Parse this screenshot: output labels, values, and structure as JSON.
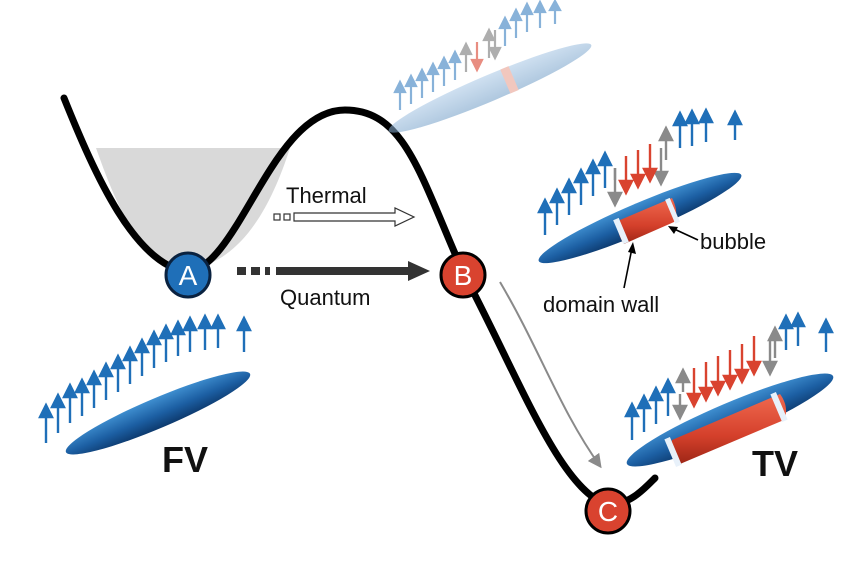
{
  "labels": {
    "thermal": "Thermal",
    "quantum": "Quantum",
    "bubble": "bubble",
    "domain_wall": "domain wall",
    "fv": "FV",
    "tv": "TV"
  },
  "nodes": {
    "a": "A",
    "b": "B",
    "c": "C"
  },
  "colors": {
    "blue": "#1f6fb8",
    "red": "#d9432f",
    "gray": "#8a8a8a",
    "well_fill": "#d9d9d9",
    "curve": "#000000"
  }
}
